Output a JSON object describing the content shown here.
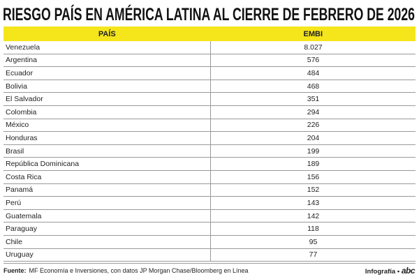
{
  "header": {
    "title": "RIESGO PAÍS EN AMÉRICA LATINA AL CIERRE DE FEBRERO DE 2026"
  },
  "table": {
    "columns": [
      "PAÍS",
      "EMBI"
    ],
    "rows": [
      [
        "Venezuela",
        "8.027"
      ],
      [
        "Argentina",
        "576"
      ],
      [
        "Ecuador",
        "484"
      ],
      [
        "Bolivia",
        "468"
      ],
      [
        "El Salvador",
        "351"
      ],
      [
        "Colombia",
        "294"
      ],
      [
        "México",
        "226"
      ],
      [
        "Honduras",
        "204"
      ],
      [
        "Brasil",
        "199"
      ],
      [
        "República Dominicana",
        "189"
      ],
      [
        "Costa Rica",
        "156"
      ],
      [
        "Panamá",
        "152"
      ],
      [
        "Perú",
        "143"
      ],
      [
        "Guatemala",
        "142"
      ],
      [
        "Paraguay",
        "118"
      ],
      [
        "Chile",
        "95"
      ],
      [
        "Uruguay",
        "77"
      ]
    ]
  },
  "footer": {
    "source_label": "Fuente:",
    "source": "MF Economía e Inversiones, con datos JP Morgan Chase/Bloomberg en Línea",
    "credit": "Infografía",
    "logo": "abc"
  }
}
